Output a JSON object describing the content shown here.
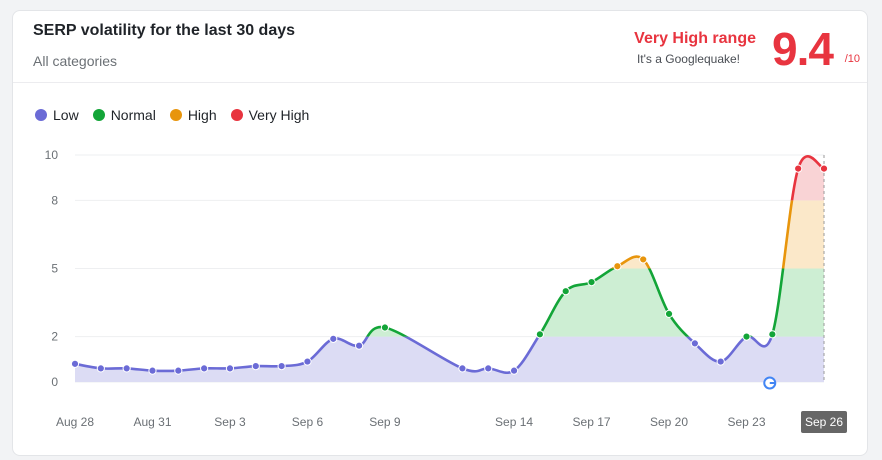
{
  "header": {
    "title": "SERP volatility for the last 30 days",
    "subtitle": "All categories",
    "range_label": "Very High range",
    "range_note": "It's a Googlequake!",
    "score": "9.4",
    "score_max": "/10"
  },
  "legend": [
    {
      "label": "Low",
      "color": "#6b6bd6"
    },
    {
      "label": "Normal",
      "color": "#13a538"
    },
    {
      "label": "High",
      "color": "#e8950c"
    },
    {
      "label": "Very High",
      "color": "#e8343f"
    }
  ],
  "chart_data": {
    "type": "area",
    "y_ticks": [
      0,
      2,
      5,
      8,
      10
    ],
    "ylim": [
      0,
      10
    ],
    "x_tick_labels": [
      "Aug 28",
      "Aug 31",
      "Sep 3",
      "Sep 6",
      "Sep 9",
      "Sep 14",
      "Sep 17",
      "Sep 20",
      "Sep 23",
      "Sep 26"
    ],
    "x_tick_days": [
      0,
      3,
      6,
      9,
      12,
      17,
      20,
      23,
      26,
      29
    ],
    "highlight_tick": "Sep 26",
    "bands": [
      {
        "name": "Low",
        "from": 0,
        "to": 2,
        "fill": "#dcdcf4",
        "stroke": "#6b6bd6"
      },
      {
        "name": "Normal",
        "from": 2,
        "to": 5,
        "fill": "#cdeed3",
        "stroke": "#13a538"
      },
      {
        "name": "High",
        "from": 5,
        "to": 8,
        "fill": "#fbe8c9",
        "stroke": "#e8950c"
      },
      {
        "name": "Very High",
        "from": 8,
        "to": 10,
        "fill": "#f9d3d5",
        "stroke": "#e8343f"
      }
    ],
    "points": [
      {
        "day": 0,
        "value": 0.8
      },
      {
        "day": 1,
        "value": 0.6
      },
      {
        "day": 2,
        "value": 0.6
      },
      {
        "day": 3,
        "value": 0.5
      },
      {
        "day": 4,
        "value": 0.5
      },
      {
        "day": 5,
        "value": 0.6
      },
      {
        "day": 6,
        "value": 0.6
      },
      {
        "day": 7,
        "value": 0.7
      },
      {
        "day": 8,
        "value": 0.7
      },
      {
        "day": 9,
        "value": 0.9
      },
      {
        "day": 10,
        "value": 1.9
      },
      {
        "day": 11,
        "value": 1.6
      },
      {
        "day": 12,
        "value": 2.4
      },
      {
        "day": 15,
        "value": 0.6
      },
      {
        "day": 16,
        "value": 0.6
      },
      {
        "day": 17,
        "value": 0.5
      },
      {
        "day": 18,
        "value": 2.1
      },
      {
        "day": 19,
        "value": 4.0
      },
      {
        "day": 20,
        "value": 4.4
      },
      {
        "day": 21,
        "value": 5.1
      },
      {
        "day": 22,
        "value": 5.4
      },
      {
        "day": 23,
        "value": 3.0
      },
      {
        "day": 24,
        "value": 1.7
      },
      {
        "day": 25,
        "value": 0.9
      },
      {
        "day": 26,
        "value": 2.0
      },
      {
        "day": 27,
        "value": 2.1
      },
      {
        "day": 28,
        "value": 9.4
      },
      {
        "day": 29,
        "value": 9.4
      }
    ]
  }
}
